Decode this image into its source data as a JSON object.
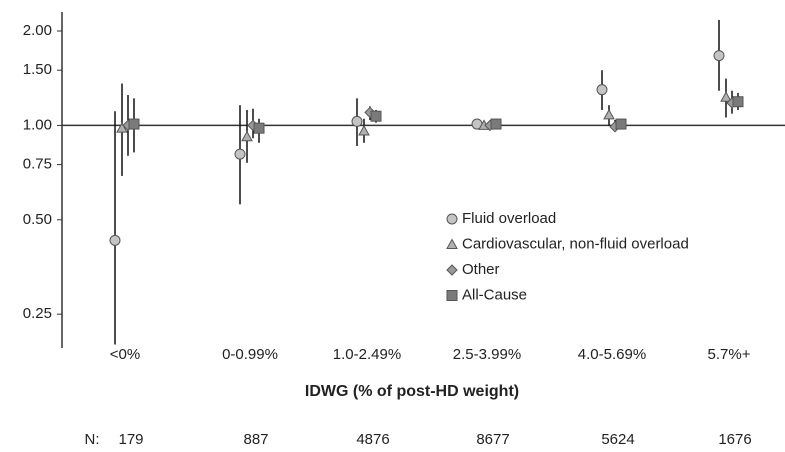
{
  "chart_data": {
    "type": "forest",
    "x_label": "IDWG (% of post-HD weight)",
    "categories": [
      "<0%",
      "0-0.99%",
      "1.0-2.49%",
      "2.5-3.99%",
      "4.0-5.69%",
      "5.7%+"
    ],
    "yscale": "log",
    "ylim": [
      0.195,
      2.3
    ],
    "yticks": [
      0.25,
      {
        "value": 0.5,
        "label": "0.50"
      },
      0.75,
      {
        "value": 1,
        "label": "1.00"
      },
      {
        "value": 1.5,
        "label": "1.50"
      },
      {
        "value": 2,
        "label": "2.00"
      }
    ],
    "reference_line": 1,
    "series": [
      {
        "name": "Fluid overload",
        "marker": "circle",
        "color": "#c4c4c4",
        "values": [
          0.43,
          0.81,
          1.03,
          1.01,
          1.3,
          1.67
        ],
        "lower": [
          0.2,
          0.56,
          0.86,
          0.99,
          1.12,
          1.29
        ],
        "upper": [
          1.11,
          1.16,
          1.22,
          1.03,
          1.5,
          2.17
        ]
      },
      {
        "name": "Cardiovascular, non-fluid overload",
        "marker": "triangle",
        "color": "#b0b0b0",
        "values": [
          0.98,
          0.92,
          0.96,
          1.0,
          1.08,
          1.23
        ],
        "lower": [
          0.69,
          0.76,
          0.88,
          0.98,
          1.0,
          1.06
        ],
        "upper": [
          1.36,
          1.12,
          1.05,
          1.02,
          1.16,
          1.41
        ]
      },
      {
        "name": "Other",
        "marker": "diamond",
        "color": "#9a9a9a",
        "values": [
          1.0,
          1.0,
          1.1,
          1.0,
          0.99,
          1.18
        ],
        "lower": [
          0.8,
          0.91,
          1.04,
          0.98,
          0.96,
          1.09
        ],
        "upper": [
          1.25,
          1.13,
          1.15,
          1.02,
          1.04,
          1.29
        ]
      },
      {
        "name": "All-Cause",
        "marker": "square",
        "color": "#7a7a7a",
        "values": [
          1.01,
          0.98,
          1.07,
          1.01,
          1.01,
          1.19
        ],
        "lower": [
          0.82,
          0.88,
          1.02,
          0.99,
          0.98,
          1.12
        ],
        "upper": [
          1.22,
          1.05,
          1.12,
          1.03,
          1.05,
          1.27
        ]
      }
    ],
    "n_label": "N:",
    "n_values": [
      179,
      887,
      4876,
      8677,
      5624,
      1676
    ]
  }
}
